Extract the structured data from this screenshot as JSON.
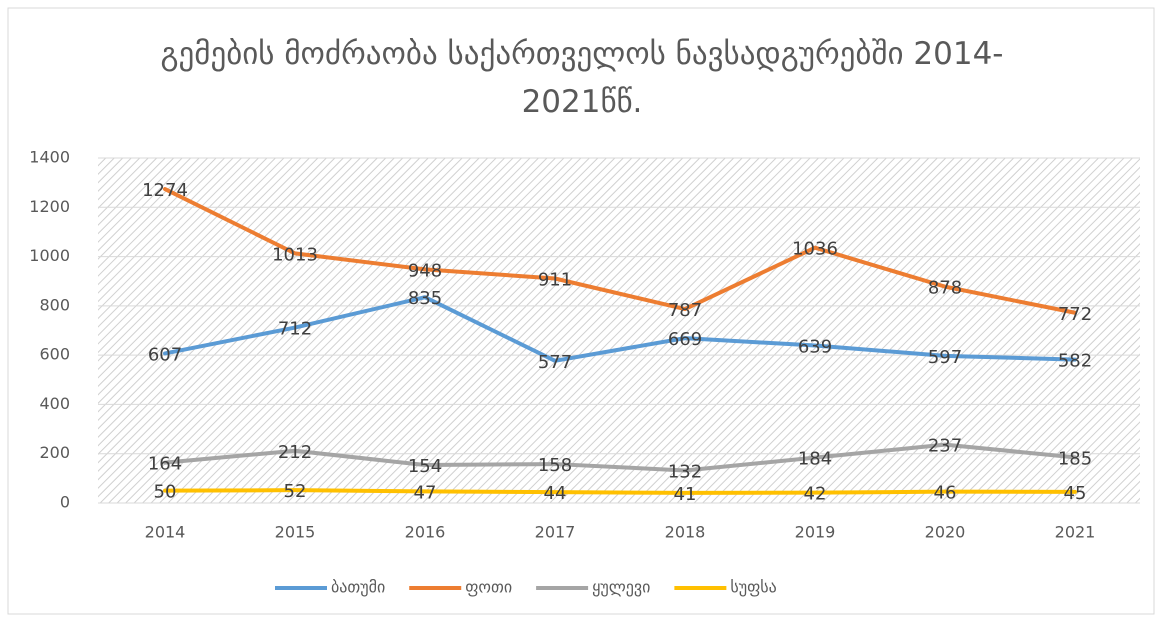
{
  "chart_data": {
    "type": "line",
    "title": "გემების მოძრაობა საქართველოს ნავსადგურებში 2014-2021წწ.",
    "categories": [
      "2014",
      "2015",
      "2016",
      "2017",
      "2018",
      "2019",
      "2020",
      "2021"
    ],
    "series": [
      {
        "name": "ბათუმი",
        "color": "#5b9bd5",
        "values": [
          607,
          712,
          835,
          577,
          669,
          639,
          597,
          582
        ]
      },
      {
        "name": "ფოთი",
        "color": "#ed7d31",
        "values": [
          1274,
          1013,
          948,
          911,
          787,
          1036,
          878,
          772
        ]
      },
      {
        "name": "ყულევი",
        "color": "#a5a5a5",
        "values": [
          164,
          212,
          154,
          158,
          132,
          184,
          237,
          185
        ]
      },
      {
        "name": "სუფსა",
        "color": "#ffc000",
        "values": [
          50,
          52,
          47,
          44,
          41,
          42,
          46,
          45
        ]
      }
    ],
    "ylim": [
      0,
      1400
    ],
    "yticks": [
      0,
      200,
      400,
      600,
      800,
      1000,
      1200,
      1400
    ],
    "grid": true,
    "legend": "bottom"
  }
}
